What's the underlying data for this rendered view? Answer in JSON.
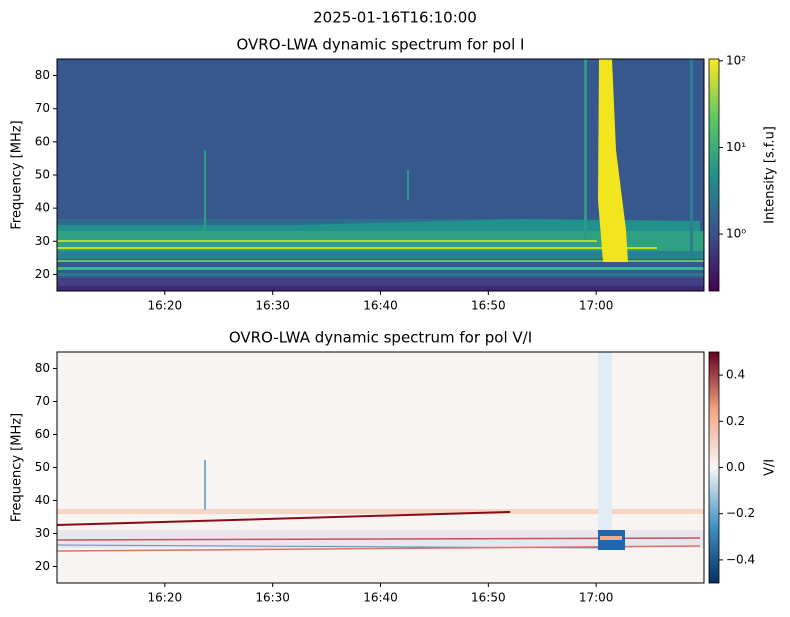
{
  "title": "2025-01-16T16:10:00",
  "chart_data": [
    {
      "type": "heatmap",
      "title": "OVRO-LWA dynamic spectrum for pol I",
      "ylabel": "Frequency [MHz]",
      "xlim": [
        "16:10",
        "17:10"
      ],
      "xticks": [
        "16:20",
        "16:30",
        "16:40",
        "16:50",
        "17:00"
      ],
      "ylim": [
        15,
        85
      ],
      "yticks": [
        20,
        30,
        40,
        50,
        60,
        70,
        80
      ],
      "colorbar": {
        "label": "Intensity [s.f.u]",
        "colormap": "viridis",
        "log": true,
        "lim": [
          0.22,
          105
        ],
        "ticks": [
          {
            "value": 1,
            "label": "10⁰"
          },
          {
            "value": 10,
            "label": "10¹"
          },
          {
            "value": 100,
            "label": "10²"
          }
        ]
      }
    },
    {
      "type": "heatmap",
      "title": "OVRO-LWA dynamic spectrum for pol V/I",
      "ylabel": "Frequency [MHz]",
      "xlim": [
        "16:10",
        "17:10"
      ],
      "xticks": [
        "16:20",
        "16:30",
        "16:40",
        "16:50",
        "17:00"
      ],
      "ylim": [
        15,
        85
      ],
      "yticks": [
        20,
        30,
        40,
        50,
        60,
        70,
        80
      ],
      "colorbar": {
        "label": "V/I",
        "colormap": "RdBu_r",
        "log": false,
        "lim": [
          -0.5,
          0.5
        ],
        "ticks": [
          {
            "value": -0.4,
            "label": "−0.4"
          },
          {
            "value": -0.2,
            "label": "−0.2"
          },
          {
            "value": 0,
            "label": "0.0"
          },
          0.2,
          0.4
        ]
      }
    }
  ]
}
